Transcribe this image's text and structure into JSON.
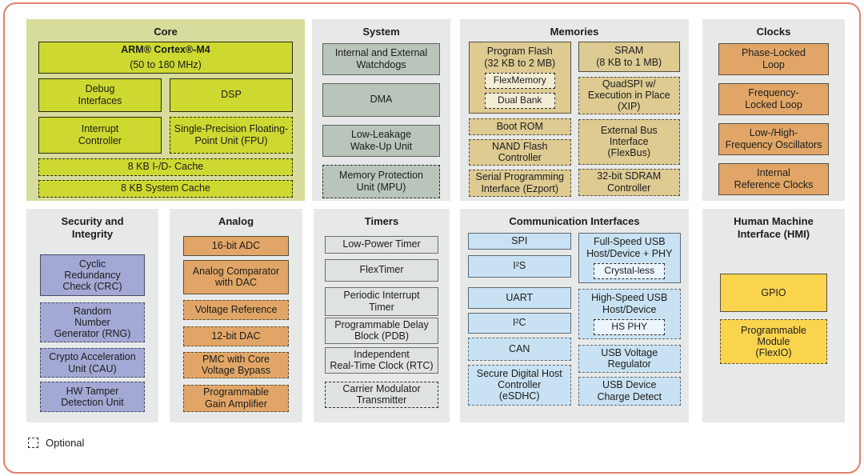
{
  "legend": {
    "label": "Optional"
  },
  "palette": {
    "frame_border": "#e0806d",
    "panel_bg": "#e7e9e8",
    "core_panel_bg": "#d7dc9d",
    "core_block": "#cdd930",
    "system_block": "#b9c5bb",
    "memory_block": "#decb92",
    "memory_nested_block": "#f3edd6",
    "clocks_analog_block": "#e1a667",
    "security_block": "#a3a9d4",
    "timers_block": "#dfe3df",
    "comm_block": "#c9e2f3",
    "comm_nested_block": "#ecf5fb",
    "hmi_block": "#fbd44e"
  },
  "panels": {
    "core": {
      "title": "Core",
      "blocks": {
        "arm": {
          "line1": "ARM® Cortex®-M4",
          "line2": "(50 to 180 MHz)"
        },
        "debug": "Debug\nInterfaces",
        "dsp": "DSP",
        "interrupt": "Interrupt\nController",
        "fpu": "Single-Precision Floating-\nPoint Unit (FPU)",
        "id_cache": "8 KB I-/D- Cache",
        "system_cache": "8 KB System Cache"
      }
    },
    "system": {
      "title": "System",
      "blocks": {
        "watchdogs": "Internal and External\nWatchdogs",
        "dma": "DMA",
        "llwu": "Low-Leakage\nWake-Up Unit",
        "mpu": "Memory Protection\nUnit (MPU)"
      }
    },
    "memories": {
      "title": "Memories",
      "blocks": {
        "program_flash": "Program Flash\n(32 KB to 2 MB)",
        "flexmemory": "FlexMemory",
        "dual_bank": "Dual Bank",
        "boot_rom": "Boot ROM",
        "nand": "NAND Flash\nController",
        "ezport": "Serial Programming\nInterface (Ezport)",
        "sram": "SRAM\n(8 KB to 1 MB)",
        "quadspi": "QuadSPI w/\nExecution in Place\n(XIP)",
        "flexbus": "External Bus\nInterface\n(FlexBus)",
        "sdram": "32-bit SDRAM\nController"
      }
    },
    "clocks": {
      "title": "Clocks",
      "blocks": {
        "pll": "Phase-Locked\nLoop",
        "fll": "Frequency-\nLocked Loop",
        "oscillators": "Low-/High-\nFrequency Oscillators",
        "irc": "Internal\nReference Clocks"
      }
    },
    "security": {
      "title": "Security and\nIntegrity",
      "blocks": {
        "crc": "Cyclic\nRedundancy\nCheck (CRC)",
        "rng": "Random\nNumber\nGenerator (RNG)",
        "cau": "Crypto Acceleration\nUnit (CAU)",
        "tamper": "HW Tamper\nDetection Unit"
      }
    },
    "analog": {
      "title": "Analog",
      "blocks": {
        "adc": "16-bit ADC",
        "comparator": "Analog Comparator\nwith DAC",
        "vref": "Voltage Reference",
        "dac": "12-bit DAC",
        "pmc": "PMC with Core\nVoltage Bypass",
        "pga": "Programmable\nGain Amplifier"
      }
    },
    "timers": {
      "title": "Timers",
      "blocks": {
        "lpt": "Low-Power Timer",
        "flextimer": "FlexTimer",
        "pit": "Periodic Interrupt\nTimer",
        "pdb": "Programmable Delay\nBlock (PDB)",
        "rtc": "Independent\nReal-Time Clock (RTC)",
        "cmt": "Carrier Modulator\nTransmitter"
      }
    },
    "comm": {
      "title": "Communication Interfaces",
      "blocks": {
        "spi": "SPI",
        "i2s": "I²S",
        "uart": "UART",
        "i2c": "I²C",
        "can": "CAN",
        "esdhc": "Secure Digital Host\nController\n(eSDHC)",
        "fs_usb": "Full-Speed USB\nHost/Device + PHY",
        "crystal_less": "Crystal-less",
        "hs_usb": "High-Speed USB\nHost/Device",
        "hs_phy": "HS PHY",
        "usb_reg": "USB Voltage\nRegulator",
        "usb_detect": "USB Device\nCharge Detect"
      }
    },
    "hmi": {
      "title": "Human Machine\nInterface (HMI)",
      "blocks": {
        "gpio": "GPIO",
        "flexio": "Programmable\nModule\n(FlexIO)"
      }
    }
  }
}
